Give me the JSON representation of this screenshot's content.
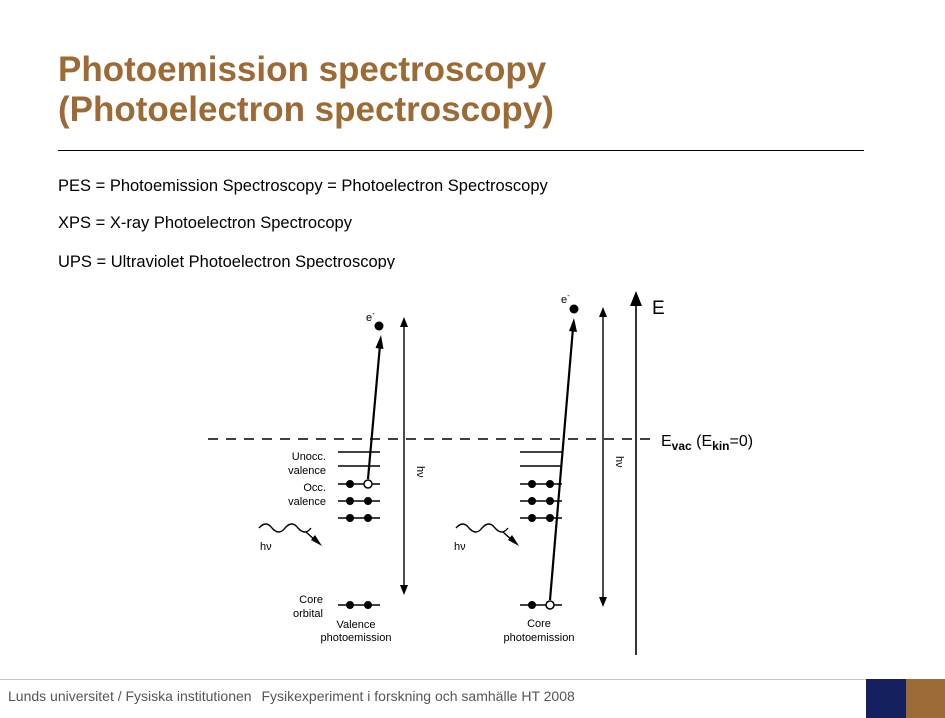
{
  "slide": {
    "title_line1": "Photoemission spectroscopy",
    "title_line2": "(Photoelectron spectroscopy)",
    "definitions": [
      "PES = Photoemission Spectroscopy = Photoelectron Spectroscopy",
      "XPS = X-ray Photoelectron Spectrocopy",
      "UPS = Ultraviolet Photoelectron Spectroscopy"
    ]
  },
  "diagram": {
    "energy_axis_label": "E",
    "vacuum_level_label": {
      "e": "E",
      "vac": "vac",
      "paren_open": " (E",
      "kin": "kin",
      "tail": "=0)"
    },
    "electron_label": "e",
    "electron_superscript": "-",
    "photon_label": "hν",
    "left_panel": {
      "unocc_label_1": "Unocc.",
      "unocc_label_2": "valence",
      "occ_label_1": "Occ.",
      "occ_label_2": "valence",
      "core_label_1": "Core",
      "core_label_2": "orbital",
      "caption_1": "Valence",
      "caption_2": "photoemission",
      "energy_arrow_label": "hν"
    },
    "right_panel": {
      "caption_1": "Core",
      "caption_2": "photoemission",
      "energy_arrow_label": "hν"
    }
  },
  "footer": {
    "institution": "Lunds universitet / Fysiska institutionen",
    "course": "Fysikexperiment i forskning och samhälle HT 2008"
  },
  "colors": {
    "title": "#9c6a35",
    "footer_blue": "#14215e",
    "footer_brown": "#9c6a35",
    "footer_text": "#555555"
  }
}
